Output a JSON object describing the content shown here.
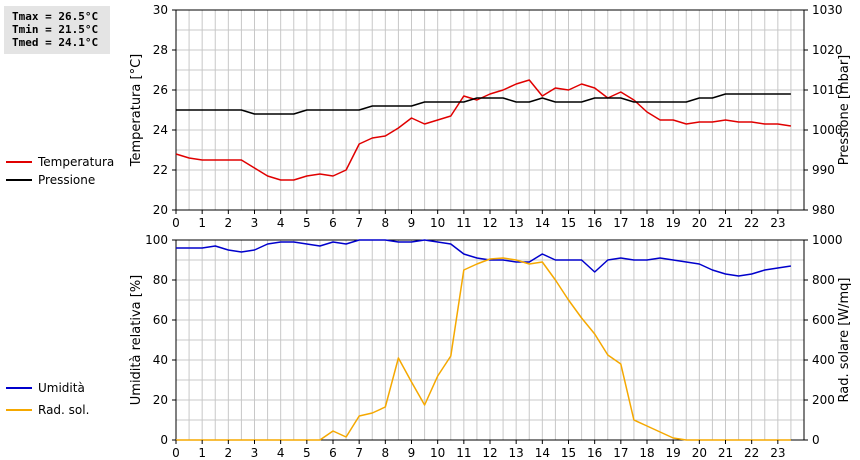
{
  "stats": {
    "tmax": "Tmax = 26.5°C",
    "tmin": "Tmin = 21.5°C",
    "tmed": "Tmed = 24.1°C"
  },
  "colors": {
    "temperature": "#e00000",
    "pressure": "#000000",
    "humidity": "#0000cc",
    "radiation": "#f5a800",
    "grid": "#c8c8c8"
  },
  "chart_data": [
    {
      "type": "line",
      "x_ticks": [
        "0",
        "1",
        "2",
        "3",
        "4",
        "5",
        "6",
        "7",
        "8",
        "9",
        "10",
        "11",
        "12",
        "13",
        "14",
        "15",
        "16",
        "17",
        "18",
        "19",
        "20",
        "21",
        "22",
        "23"
      ],
      "xlim": [
        0,
        24
      ],
      "ylabel": "Temperatura [°C]",
      "ylim": [
        20,
        30
      ],
      "y_ticks": [
        "20",
        "22",
        "24",
        "26",
        "28",
        "30"
      ],
      "y2label": "Pressione [mbar]",
      "y2lim": [
        980,
        1030
      ],
      "y2_ticks": [
        "980",
        "990",
        "1000",
        "1010",
        "1020",
        "1030"
      ],
      "grid": true,
      "legend": "left",
      "series": [
        {
          "name": "Temperatura",
          "axis": "left",
          "x": [
            0,
            0.5,
            1,
            1.5,
            2,
            2.5,
            3,
            3.5,
            4,
            4.5,
            5,
            5.5,
            6,
            6.5,
            7,
            7.5,
            8,
            8.5,
            9,
            9.5,
            10,
            10.5,
            11,
            11.5,
            12,
            12.5,
            13,
            13.5,
            14,
            14.5,
            15,
            15.5,
            16,
            16.5,
            17,
            17.5,
            18,
            18.5,
            19,
            19.5,
            20,
            20.5,
            21,
            21.5,
            22,
            22.5,
            23,
            23.5
          ],
          "y": [
            22.8,
            22.6,
            22.5,
            22.5,
            22.5,
            22.5,
            22.1,
            21.7,
            21.5,
            21.5,
            21.7,
            21.8,
            21.7,
            22.0,
            23.3,
            23.6,
            23.7,
            24.1,
            24.6,
            24.3,
            24.5,
            24.7,
            25.7,
            25.5,
            25.8,
            26.0,
            26.3,
            26.5,
            25.7,
            26.1,
            26.0,
            26.3,
            26.1,
            25.6,
            25.9,
            25.5,
            24.9,
            24.5,
            24.5,
            24.3,
            24.4,
            24.4,
            24.5,
            24.4,
            24.4,
            24.3,
            24.3,
            24.2
          ]
        },
        {
          "name": "Pressione",
          "axis": "right",
          "x": [
            0,
            0.5,
            1,
            1.5,
            2,
            2.5,
            3,
            3.5,
            4,
            4.5,
            5,
            5.5,
            6,
            6.5,
            7,
            7.5,
            8,
            8.5,
            9,
            9.5,
            10,
            10.5,
            11,
            11.5,
            12,
            12.5,
            13,
            13.5,
            14,
            14.5,
            15,
            15.5,
            16,
            16.5,
            17,
            17.5,
            18,
            18.5,
            19,
            19.5,
            20,
            20.5,
            21,
            21.5,
            22,
            22.5,
            23,
            23.5
          ],
          "y": [
            1005,
            1005,
            1005,
            1005,
            1005,
            1005,
            1004,
            1004,
            1004,
            1004,
            1005,
            1005,
            1005,
            1005,
            1005,
            1006,
            1006,
            1006,
            1006,
            1007,
            1007,
            1007,
            1007,
            1008,
            1008,
            1008,
            1007,
            1007,
            1008,
            1007,
            1007,
            1007,
            1008,
            1008,
            1008,
            1007,
            1007,
            1007,
            1007,
            1007,
            1008,
            1008,
            1009,
            1009,
            1009,
            1009,
            1009,
            1009
          ]
        }
      ]
    },
    {
      "type": "line",
      "x_ticks": [
        "0",
        "1",
        "2",
        "3",
        "4",
        "5",
        "6",
        "7",
        "8",
        "9",
        "10",
        "11",
        "12",
        "13",
        "14",
        "15",
        "16",
        "17",
        "18",
        "19",
        "20",
        "21",
        "22",
        "23"
      ],
      "xlim": [
        0,
        24
      ],
      "ylabel": "Umidità relativa [%]",
      "ylim": [
        0,
        100
      ],
      "y_ticks": [
        "0",
        "20",
        "40",
        "60",
        "80",
        "100"
      ],
      "y2label": "Rad. solare [W/mq]",
      "y2lim": [
        0,
        1000
      ],
      "y2_ticks": [
        "0",
        "200",
        "400",
        "600",
        "800",
        "1000"
      ],
      "grid": true,
      "legend": "left",
      "series": [
        {
          "name": "Umidità",
          "axis": "left",
          "x": [
            0,
            0.5,
            1,
            1.5,
            2,
            2.5,
            3,
            3.5,
            4,
            4.5,
            5,
            5.5,
            6,
            6.5,
            7,
            7.5,
            8,
            8.5,
            9,
            9.5,
            10,
            10.5,
            11,
            11.5,
            12,
            12.5,
            13,
            13.5,
            14,
            14.5,
            15,
            15.5,
            16,
            16.5,
            17,
            17.5,
            18,
            18.5,
            19,
            19.5,
            20,
            20.5,
            21,
            21.5,
            22,
            22.5,
            23,
            23.5
          ],
          "y": [
            96,
            96,
            96,
            97,
            95,
            94,
            95,
            98,
            99,
            99,
            98,
            97,
            99,
            98,
            100,
            100,
            100,
            99,
            99,
            100,
            99,
            98,
            93,
            91,
            90,
            90,
            89,
            89,
            93,
            90,
            90,
            90,
            84,
            90,
            91,
            90,
            90,
            91,
            90,
            89,
            88,
            85,
            83,
            82,
            83,
            85,
            86,
            87
          ]
        },
        {
          "name": "Rad. sol.",
          "axis": "right",
          "x": [
            0,
            0.5,
            1,
            1.5,
            2,
            2.5,
            3,
            3.5,
            4,
            4.5,
            5,
            5.5,
            6,
            6.5,
            7,
            7.5,
            8,
            8.5,
            9,
            9.5,
            10,
            10.5,
            11,
            11.5,
            12,
            12.5,
            13,
            13.5,
            14,
            14.5,
            15,
            15.5,
            16,
            16.5,
            17,
            17.5,
            18,
            18.5,
            19,
            19.5,
            20,
            20.5,
            21,
            21.5,
            22,
            22.5,
            23,
            23.5
          ],
          "y": [
            0,
            0,
            0,
            0,
            0,
            0,
            0,
            0,
            0,
            0,
            0,
            0,
            45,
            15,
            120,
            135,
            165,
            410,
            290,
            175,
            320,
            420,
            850,
            880,
            905,
            910,
            900,
            880,
            890,
            800,
            700,
            610,
            530,
            425,
            380,
            100,
            70,
            40,
            10,
            0,
            0,
            0,
            0,
            0,
            0,
            0,
            0,
            0
          ]
        }
      ]
    }
  ]
}
